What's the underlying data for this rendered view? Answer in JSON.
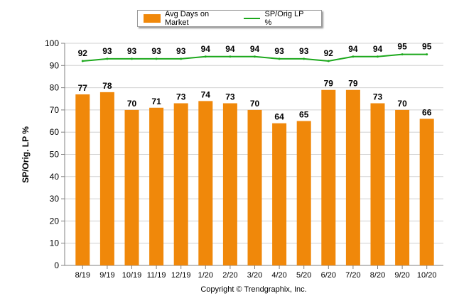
{
  "legend": {
    "bar_label": "Avg Days on Market",
    "line_label": "SP/Orig LP %"
  },
  "copyright": "Copyright © Trendgraphix, Inc.",
  "chart_data": {
    "type": "bar",
    "categories": [
      "8/19",
      "9/19",
      "10/19",
      "11/19",
      "12/19",
      "1/20",
      "2/20",
      "3/20",
      "4/20",
      "5/20",
      "6/20",
      "7/20",
      "8/20",
      "9/20",
      "10/20"
    ],
    "series": [
      {
        "name": "Avg Days on Market",
        "type": "bar",
        "color": "#f0880a",
        "values": [
          77,
          78,
          70,
          71,
          73,
          74,
          73,
          70,
          64,
          65,
          79,
          79,
          73,
          70,
          66
        ]
      },
      {
        "name": "SP/Orig LP %",
        "type": "line",
        "color": "#1ca81c",
        "values": [
          92,
          93,
          93,
          93,
          93,
          94,
          94,
          94,
          93,
          93,
          92,
          94,
          94,
          95,
          95
        ]
      }
    ],
    "xlabel": "",
    "ylabel": "SP/Orig. LP %",
    "ylim": [
      0,
      100
    ],
    "yticks": [
      0,
      10,
      20,
      30,
      40,
      50,
      60,
      70,
      80,
      90,
      100
    ],
    "grid": true,
    "legend_position": "top"
  }
}
